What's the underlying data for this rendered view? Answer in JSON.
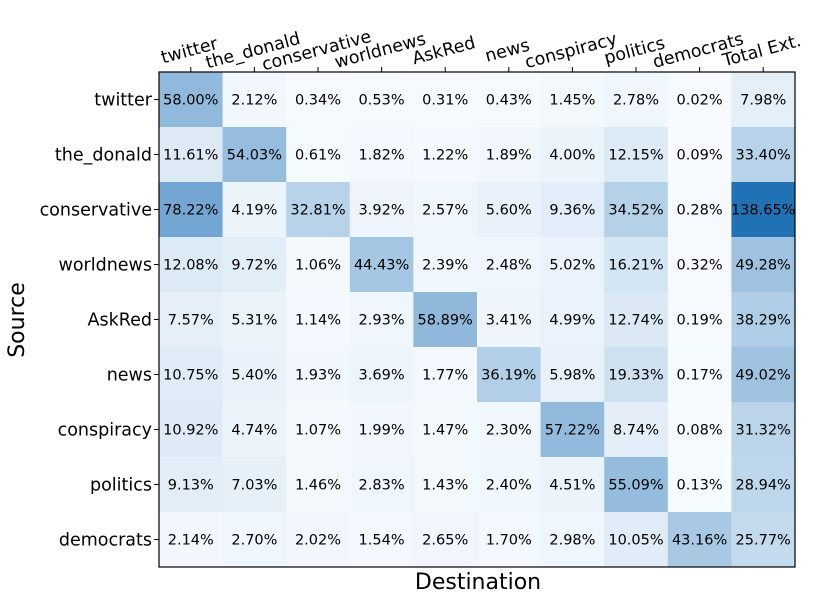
{
  "chart_data": {
    "type": "heatmap",
    "xlabel": "Destination",
    "ylabel": "Source",
    "x_categories": [
      "twitter",
      "the_donald",
      "conservative",
      "worldnews",
      "AskRed",
      "news",
      "conspiracy",
      "politics",
      "democrats",
      "Total Ext."
    ],
    "y_categories": [
      "twitter",
      "the_donald",
      "conservative",
      "worldnews",
      "AskRed",
      "news",
      "conspiracy",
      "politics",
      "democrats"
    ],
    "values": [
      [
        58.0,
        2.12,
        0.34,
        0.53,
        0.31,
        0.43,
        1.45,
        2.78,
        0.02,
        7.98
      ],
      [
        11.61,
        54.03,
        0.61,
        1.82,
        1.22,
        1.89,
        4.0,
        12.15,
        0.09,
        33.4
      ],
      [
        78.22,
        4.19,
        32.81,
        3.92,
        2.57,
        5.6,
        9.36,
        34.52,
        0.28,
        138.65
      ],
      [
        12.08,
        9.72,
        1.06,
        44.43,
        2.39,
        2.48,
        5.02,
        16.21,
        0.32,
        49.28
      ],
      [
        7.57,
        5.31,
        1.14,
        2.93,
        58.89,
        3.41,
        4.99,
        12.74,
        0.19,
        38.29
      ],
      [
        10.75,
        5.4,
        1.93,
        3.69,
        1.77,
        36.19,
        5.98,
        19.33,
        0.17,
        49.02
      ],
      [
        10.92,
        4.74,
        1.07,
        1.99,
        1.47,
        2.3,
        57.22,
        8.74,
        0.08,
        31.32
      ],
      [
        9.13,
        7.03,
        1.46,
        2.83,
        1.43,
        2.4,
        4.51,
        55.09,
        0.13,
        28.94
      ],
      [
        2.14,
        2.7,
        2.02,
        1.54,
        2.65,
        1.7,
        2.98,
        10.05,
        43.16,
        25.77
      ]
    ],
    "cell_labels": [
      [
        "58.00%",
        "2.12%",
        "0.34%",
        "0.53%",
        "0.31%",
        "0.43%",
        "1.45%",
        "2.78%",
        "0.02%",
        "7.98%"
      ],
      [
        "11.61%",
        "54.03%",
        "0.61%",
        "1.82%",
        "1.22%",
        "1.89%",
        "4.00%",
        "12.15%",
        "0.09%",
        "33.40%"
      ],
      [
        "78.22%",
        "4.19%",
        "32.81%",
        "3.92%",
        "2.57%",
        "5.60%",
        "9.36%",
        "34.52%",
        "0.28%",
        "138.65%"
      ],
      [
        "12.08%",
        "9.72%",
        "1.06%",
        "44.43%",
        "2.39%",
        "2.48%",
        "5.02%",
        "16.21%",
        "0.32%",
        "49.28%"
      ],
      [
        "7.57%",
        "5.31%",
        "1.14%",
        "2.93%",
        "58.89%",
        "3.41%",
        "4.99%",
        "12.74%",
        "0.19%",
        "38.29%"
      ],
      [
        "10.75%",
        "5.40%",
        "1.93%",
        "3.69%",
        "1.77%",
        "36.19%",
        "5.98%",
        "19.33%",
        "0.17%",
        "49.02%"
      ],
      [
        "10.92%",
        "4.74%",
        "1.07%",
        "1.99%",
        "1.47%",
        "2.30%",
        "57.22%",
        "8.74%",
        "0.08%",
        "31.32%"
      ],
      [
        "9.13%",
        "7.03%",
        "1.46%",
        "2.83%",
        "1.43%",
        "2.40%",
        "4.51%",
        "55.09%",
        "0.13%",
        "28.94%"
      ],
      [
        "2.14%",
        "2.70%",
        "2.02%",
        "1.54%",
        "2.65%",
        "1.70%",
        "2.98%",
        "10.05%",
        "43.16%",
        "25.77%"
      ]
    ],
    "colormap": {
      "low": "#f7fbff",
      "high": "#2171b5"
    },
    "x_axis_position": "top",
    "x_tick_rotation_deg": -15,
    "grid": false,
    "legend": "none"
  }
}
